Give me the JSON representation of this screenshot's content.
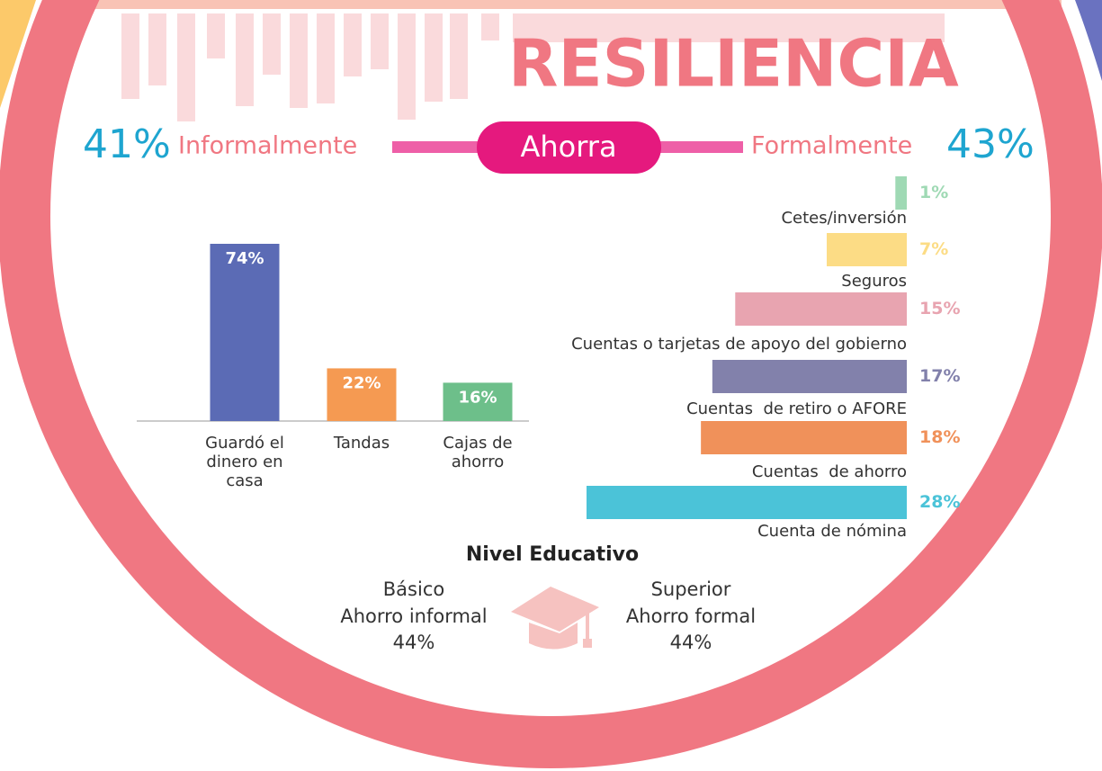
{
  "title": "RESILIENCIA",
  "header": {
    "left_value": "41%",
    "left_label": "Informalmente",
    "center": "Ahorra",
    "right_label": "Formalmente",
    "right_value": "43%"
  },
  "chart_data": [
    {
      "type": "bar",
      "categories": [
        "Guardó el dinero en casa",
        "Tandas",
        "Cajas de ahorro"
      ],
      "values": [
        74,
        22,
        16
      ],
      "value_labels": [
        "74%",
        "22%",
        "16%"
      ],
      "colors": [
        "#5b6bb5",
        "#f59a52",
        "#6dbf8a"
      ]
    },
    {
      "type": "hbar",
      "categories": [
        "Cetes/inversión",
        "Seguros",
        "Cuentas o tarjetas de apoyo del gobierno",
        "Cuentas  de retiro o AFORE",
        "Cuentas  de ahorro",
        "Cuenta de nómina"
      ],
      "values": [
        1,
        7,
        15,
        17,
        18,
        28
      ],
      "value_labels": [
        "1%",
        "7%",
        "15%",
        "17%",
        "18%",
        "28%"
      ],
      "colors": [
        "#9fd9b4",
        "#fcdc85",
        "#e8a4b0",
        "#8281ab",
        "#f0915a",
        "#4bc3d8"
      ]
    }
  ],
  "education": {
    "title": "Nivel Educativo",
    "left": {
      "level": "Básico",
      "label": "Ahorro informal",
      "value": "44%"
    },
    "right": {
      "level": "Superior",
      "label": "Ahorro formal",
      "value": "44%"
    }
  }
}
